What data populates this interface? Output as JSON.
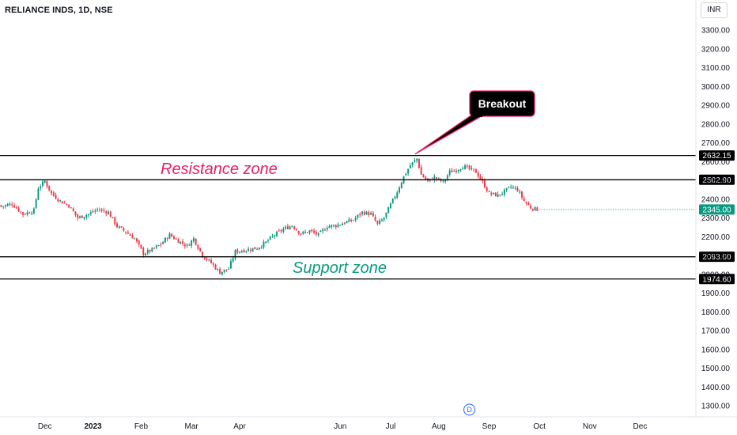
{
  "header": {
    "title": "RELIANCE INDS, 1D, NSE",
    "currency": "INR"
  },
  "chart_data": {
    "type": "candlestick",
    "symbol": "RELIANCE INDS",
    "interval": "1D",
    "exchange": "NSE",
    "ylim": [
      1270,
      3370
    ],
    "y_ticks": [
      1300,
      1400,
      1500,
      1600,
      1700,
      1800,
      1900,
      2000,
      2100,
      2200,
      2300,
      2400,
      2500,
      2600,
      2700,
      2800,
      2900,
      3000,
      3100,
      3200,
      3300
    ],
    "y_tick_labels": [
      "1300.00",
      "1400.00",
      "1500.00",
      "1600.00",
      "1700.00",
      "1800.00",
      "1900.00",
      "2000.00",
      "2100.00",
      "2200.00",
      "2300.00",
      "2400.00",
      "2500.00",
      "2600.00",
      "2700.00",
      "2800.00",
      "2900.00",
      "3000.00",
      "3100.00",
      "3200.00",
      "3300.00"
    ],
    "x_months": [
      "Dec",
      "2023",
      "Feb",
      "Mar",
      "Apr",
      "Jun",
      "Jul",
      "Aug",
      "Sep",
      "Oct",
      "Nov",
      "Dec"
    ],
    "x_month_index": [
      20,
      42,
      64,
      87,
      109,
      155,
      178,
      200,
      223,
      246,
      269,
      292
    ],
    "bold_months": [
      "2023"
    ],
    "total_slots": 318,
    "close_path": [
      {
        "i": 0,
        "v": 2360
      },
      {
        "i": 5,
        "v": 2375
      },
      {
        "i": 10,
        "v": 2320
      },
      {
        "i": 15,
        "v": 2340
      },
      {
        "i": 17,
        "v": 2460
      },
      {
        "i": 20,
        "v": 2495
      },
      {
        "i": 23,
        "v": 2430
      },
      {
        "i": 27,
        "v": 2390
      },
      {
        "i": 31,
        "v": 2365
      },
      {
        "i": 35,
        "v": 2300
      },
      {
        "i": 40,
        "v": 2320
      },
      {
        "i": 44,
        "v": 2345
      },
      {
        "i": 49,
        "v": 2330
      },
      {
        "i": 53,
        "v": 2255
      },
      {
        "i": 57,
        "v": 2225
      },
      {
        "i": 61,
        "v": 2190
      },
      {
        "i": 65,
        "v": 2110
      },
      {
        "i": 69,
        "v": 2130
      },
      {
        "i": 73,
        "v": 2160
      },
      {
        "i": 77,
        "v": 2210
      },
      {
        "i": 80,
        "v": 2185
      },
      {
        "i": 85,
        "v": 2150
      },
      {
        "i": 88,
        "v": 2190
      },
      {
        "i": 92,
        "v": 2100
      },
      {
        "i": 96,
        "v": 2060
      },
      {
        "i": 100,
        "v": 2010
      },
      {
        "i": 104,
        "v": 2030
      },
      {
        "i": 107,
        "v": 2120
      },
      {
        "i": 112,
        "v": 2130
      },
      {
        "i": 117,
        "v": 2140
      },
      {
        "i": 121,
        "v": 2170
      },
      {
        "i": 125,
        "v": 2210
      },
      {
        "i": 129,
        "v": 2240
      },
      {
        "i": 133,
        "v": 2260
      },
      {
        "i": 137,
        "v": 2215
      },
      {
        "i": 141,
        "v": 2230
      },
      {
        "i": 145,
        "v": 2210
      },
      {
        "i": 149,
        "v": 2255
      },
      {
        "i": 153,
        "v": 2260
      },
      {
        "i": 157,
        "v": 2275
      },
      {
        "i": 161,
        "v": 2290
      },
      {
        "i": 165,
        "v": 2330
      },
      {
        "i": 169,
        "v": 2320
      },
      {
        "i": 172,
        "v": 2265
      },
      {
        "i": 175,
        "v": 2300
      },
      {
        "i": 178,
        "v": 2370
      },
      {
        "i": 181,
        "v": 2440
      },
      {
        "i": 184,
        "v": 2520
      },
      {
        "i": 187,
        "v": 2580
      },
      {
        "i": 190,
        "v": 2615
      },
      {
        "i": 192,
        "v": 2530
      },
      {
        "i": 195,
        "v": 2495
      },
      {
        "i": 198,
        "v": 2515
      },
      {
        "i": 202,
        "v": 2490
      },
      {
        "i": 205,
        "v": 2545
      },
      {
        "i": 208,
        "v": 2555
      },
      {
        "i": 211,
        "v": 2575
      },
      {
        "i": 214,
        "v": 2560
      },
      {
        "i": 217,
        "v": 2545
      },
      {
        "i": 220,
        "v": 2490
      },
      {
        "i": 223,
        "v": 2430
      },
      {
        "i": 227,
        "v": 2420
      },
      {
        "i": 230,
        "v": 2440
      },
      {
        "i": 233,
        "v": 2465
      },
      {
        "i": 236,
        "v": 2450
      },
      {
        "i": 239,
        "v": 2390
      },
      {
        "i": 242,
        "v": 2355
      },
      {
        "i": 245,
        "v": 2345
      }
    ],
    "levels": [
      {
        "value": 2632.15,
        "label": "2632.15",
        "color": "#000000"
      },
      {
        "value": 2502.9,
        "label": "2502.90",
        "color": "#000000"
      },
      {
        "value": 2093.0,
        "label": "2093.00",
        "color": "#000000"
      },
      {
        "value": 1974.6,
        "label": "1974.60",
        "color": "#000000"
      }
    ],
    "last_price": {
      "value": 2345.0,
      "label": "2345.00",
      "color": "#089981"
    },
    "annotations": {
      "resistance": {
        "text": "Resistance zone",
        "color": "#e91e63"
      },
      "support": {
        "text": "Support zone",
        "color": "#089981"
      },
      "breakout": {
        "text": "Breakout",
        "bg": "#000000",
        "border": "#e91e63",
        "arrow_to_index": 190,
        "arrow_to_value": 2632.15
      }
    },
    "dividend_marker": {
      "text": "D",
      "index": 214
    },
    "colors": {
      "up": "#089981",
      "down": "#f23645"
    }
  }
}
